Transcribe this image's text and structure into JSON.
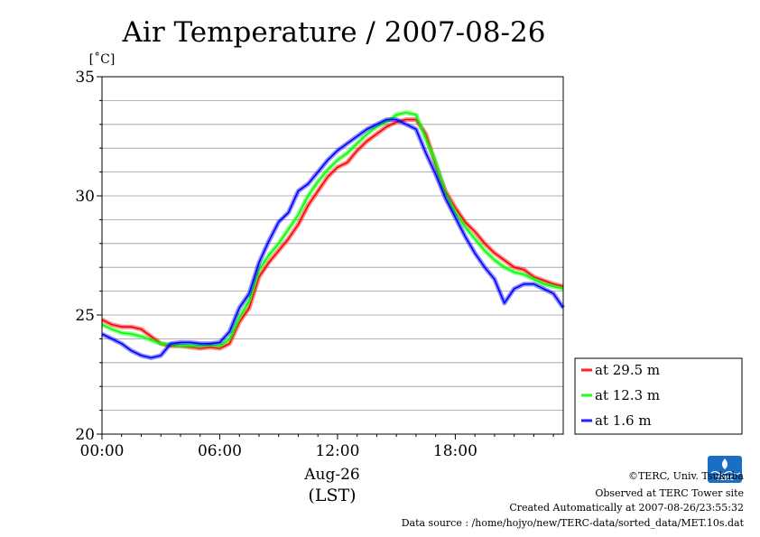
{
  "chart_data": {
    "type": "line",
    "title": "Air Temperature / 2007-08-26",
    "ylabel": "[˚C]",
    "xlabel": "Aug-26",
    "xlabel2": "(LST)",
    "x_unit": "hour",
    "xlim": [
      0,
      23.5
    ],
    "ylim": [
      20,
      35
    ],
    "yticks": [
      20,
      25,
      30,
      35
    ],
    "xticks": [
      {
        "value": 0,
        "label": "00:00"
      },
      {
        "value": 6,
        "label": "06:00"
      },
      {
        "value": 12,
        "label": "12:00"
      },
      {
        "value": 18,
        "label": "18:00"
      }
    ],
    "grid": "horizontal, every 1 °C",
    "legend_position": "right, lower",
    "series": [
      {
        "name": "at 29.5 m",
        "color": "#ff0000",
        "x": [
          0,
          0.5,
          1,
          1.5,
          2,
          2.5,
          3,
          3.5,
          4,
          4.5,
          5,
          5.5,
          6,
          6.5,
          7,
          7.5,
          8,
          8.5,
          9,
          9.5,
          10,
          10.5,
          11,
          11.5,
          12,
          12.5,
          13,
          13.5,
          14,
          14.5,
          15,
          15.5,
          16,
          16.5,
          17,
          17.5,
          18,
          18.5,
          19,
          19.5,
          20,
          20.5,
          21,
          21.5,
          22,
          22.5,
          23,
          23.5
        ],
        "values": [
          24.8,
          24.6,
          24.5,
          24.5,
          24.4,
          24.1,
          23.8,
          23.7,
          23.7,
          23.65,
          23.6,
          23.65,
          23.6,
          23.8,
          24.7,
          25.3,
          26.6,
          27.2,
          27.7,
          28.2,
          28.8,
          29.6,
          30.2,
          30.8,
          31.2,
          31.4,
          31.9,
          32.3,
          32.6,
          32.9,
          33.1,
          33.2,
          33.2,
          32.6,
          31.3,
          30.2,
          29.5,
          28.9,
          28.5,
          28.0,
          27.6,
          27.3,
          27.0,
          26.9,
          26.6,
          26.45,
          26.3,
          26.2
        ]
      },
      {
        "name": "at 12.3 m",
        "color": "#00ff00",
        "x": [
          0,
          0.5,
          1,
          1.5,
          2,
          2.5,
          3,
          3.5,
          4,
          4.5,
          5,
          5.5,
          6,
          6.5,
          7,
          7.5,
          8,
          8.5,
          9,
          9.5,
          10,
          10.5,
          11,
          11.5,
          12,
          12.5,
          13,
          13.5,
          14,
          14.5,
          15,
          15.5,
          16,
          16.5,
          17,
          17.5,
          18,
          18.5,
          19,
          19.5,
          20,
          20.5,
          21,
          21.5,
          22,
          22.5,
          23,
          23.5
        ],
        "values": [
          24.6,
          24.4,
          24.25,
          24.2,
          24.1,
          23.95,
          23.8,
          23.75,
          23.7,
          23.7,
          23.7,
          23.75,
          23.7,
          24.0,
          24.9,
          25.6,
          26.9,
          27.5,
          28.0,
          28.6,
          29.2,
          30.0,
          30.6,
          31.1,
          31.5,
          31.8,
          32.2,
          32.6,
          32.9,
          33.1,
          33.4,
          33.5,
          33.4,
          32.4,
          31.4,
          30.1,
          29.3,
          28.7,
          28.2,
          27.7,
          27.3,
          27.0,
          26.8,
          26.7,
          26.5,
          26.3,
          26.2,
          26.1
        ]
      },
      {
        "name": "at 1.6 m",
        "color": "#0000ff",
        "x": [
          0,
          0.5,
          1,
          1.5,
          2,
          2.5,
          3,
          3.5,
          4,
          4.5,
          5,
          5.5,
          6,
          6.5,
          7,
          7.5,
          8,
          8.5,
          9,
          9.5,
          10,
          10.5,
          11,
          11.5,
          12,
          12.5,
          13,
          13.5,
          14,
          14.5,
          15,
          15.5,
          16,
          16.5,
          17,
          17.5,
          18,
          18.5,
          19,
          19.5,
          20,
          20.5,
          21,
          21.5,
          22,
          22.5,
          23,
          23.5
        ],
        "values": [
          24.2,
          24.0,
          23.8,
          23.5,
          23.3,
          23.2,
          23.3,
          23.8,
          23.85,
          23.85,
          23.8,
          23.8,
          23.85,
          24.3,
          25.3,
          25.9,
          27.2,
          28.1,
          28.9,
          29.3,
          30.2,
          30.5,
          31.0,
          31.5,
          31.9,
          32.2,
          32.5,
          32.8,
          33.0,
          33.2,
          33.2,
          33.0,
          32.8,
          31.8,
          30.9,
          29.9,
          29.1,
          28.3,
          27.6,
          27.0,
          26.5,
          25.5,
          26.1,
          26.3,
          26.3,
          26.1,
          25.9,
          25.3
        ]
      }
    ]
  },
  "credits": {
    "line1": "©TERC, Univ. Tsukuba",
    "line2": "Observed at TERC Tower site",
    "line3": "Created Automatically at 2007-08-26/23:55:32",
    "line4": "Data source : /home/hojyo/new/TERC-data/sorted_data/MET.10s.dat",
    "logo_text": "TERC",
    "logo_icon": "terc-logo-icon"
  }
}
